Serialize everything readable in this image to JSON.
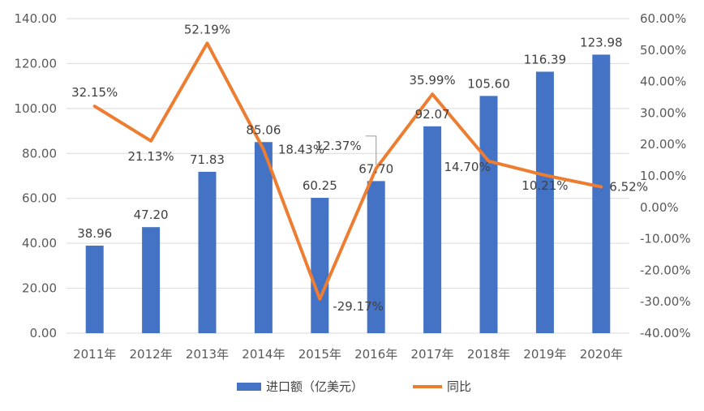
{
  "chart_data": {
    "type": "bar",
    "categories": [
      "2011年",
      "2012年",
      "2013年",
      "2014年",
      "2015年",
      "2016年",
      "2017年",
      "2018年",
      "2019年",
      "2020年"
    ],
    "series": [
      {
        "name": "进口额（亿美元）",
        "type": "bar",
        "axis": "left",
        "values": [
          38.96,
          47.2,
          71.83,
          85.06,
          60.25,
          67.7,
          92.07,
          105.6,
          116.39,
          123.98
        ],
        "labels": [
          "38.96",
          "47.20",
          "71.83",
          "85.06",
          "60.25",
          "67.70",
          "92.07",
          "105.60",
          "116.39",
          "123.98"
        ],
        "color": "#4472c4"
      },
      {
        "name": "同比",
        "type": "line",
        "axis": "right",
        "values": [
          32.15,
          21.13,
          52.19,
          18.43,
          -29.17,
          12.37,
          35.99,
          14.7,
          10.21,
          6.52
        ],
        "labels": [
          "32.15%",
          "21.13%",
          "52.19%",
          "18.43%",
          "-29.17%",
          "12.37%",
          "35.99%",
          "14.70%",
          "10.21%",
          "6.52%"
        ],
        "color": "#ed7d31"
      }
    ],
    "y_left": {
      "range": [
        0,
        140
      ],
      "ticks": [
        "0.00",
        "20.00",
        "40.00",
        "60.00",
        "80.00",
        "100.00",
        "120.00",
        "140.00"
      ]
    },
    "y_right": {
      "range": [
        -40,
        60
      ],
      "ticks": [
        "-40.00%",
        "-30.00%",
        "-20.00%",
        "-10.00%",
        "0.00%",
        "10.00%",
        "20.00%",
        "30.00%",
        "40.00%",
        "50.00%",
        "60.00%"
      ]
    },
    "grid": true,
    "legend_position": "bottom"
  }
}
